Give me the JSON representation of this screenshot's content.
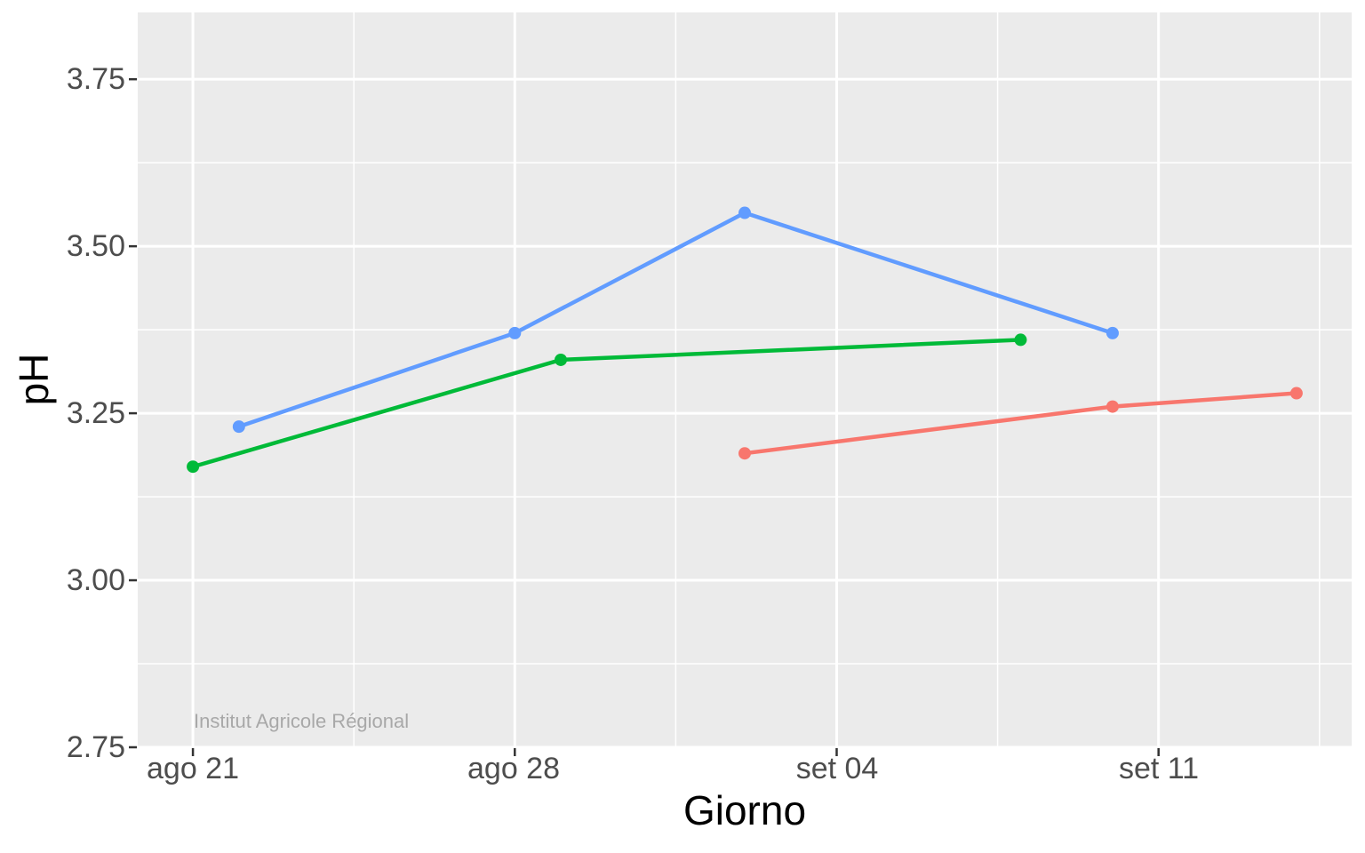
{
  "watermark": {
    "text": "Institut Agricole Régional",
    "color": "#A8A8A8"
  },
  "style": {
    "page_bg": "#FFFFFF",
    "panel_bg": "#EBEBEB",
    "grid_color": "#FFFFFF",
    "tick_mark_color": "#333333",
    "tick_label_color": "#4D4D4D",
    "axis_title_color": "#000000"
  },
  "chart_data": {
    "type": "line",
    "title": "",
    "xlabel": "Giorno",
    "ylabel": "pH",
    "grid": true,
    "legend": "none",
    "x_tick_labels": [
      "ago 21",
      "ago 28",
      "set 04",
      "set 11"
    ],
    "x_tick_days": [
      0,
      7,
      14,
      21
    ],
    "x_minor_days": [
      3.5,
      10.5,
      17.5,
      24.5
    ],
    "xlim_days": [
      -1.2,
      25.2
    ],
    "x_day_zero": "ago 21",
    "y_tick_labels": [
      "2.75",
      "3.00",
      "3.25",
      "3.50",
      "3.75"
    ],
    "y_ticks": [
      2.75,
      3.0,
      3.25,
      3.5,
      3.75
    ],
    "y_minor": [
      2.875,
      3.125,
      3.375,
      3.625
    ],
    "ylim": [
      2.75,
      3.85
    ],
    "series": [
      {
        "name": "series-blue",
        "color": "#619CFF",
        "points": [
          {
            "date": "ago 22",
            "day": 1,
            "ph": 3.23
          },
          {
            "date": "ago 28",
            "day": 7,
            "ph": 3.37
          },
          {
            "date": "set 02",
            "day": 12,
            "ph": 3.55
          },
          {
            "date": "set 10",
            "day": 20,
            "ph": 3.37
          }
        ]
      },
      {
        "name": "series-green",
        "color": "#00BA38",
        "points": [
          {
            "date": "ago 21",
            "day": 0,
            "ph": 3.17
          },
          {
            "date": "ago 29",
            "day": 8,
            "ph": 3.33
          },
          {
            "date": "set 08",
            "day": 18,
            "ph": 3.36
          }
        ]
      },
      {
        "name": "series-red",
        "color": "#F8766D",
        "points": [
          {
            "date": "set 02",
            "day": 12,
            "ph": 3.19
          },
          {
            "date": "set 10",
            "day": 20,
            "ph": 3.26
          },
          {
            "date": "set 14",
            "day": 24,
            "ph": 3.28
          }
        ]
      }
    ]
  }
}
